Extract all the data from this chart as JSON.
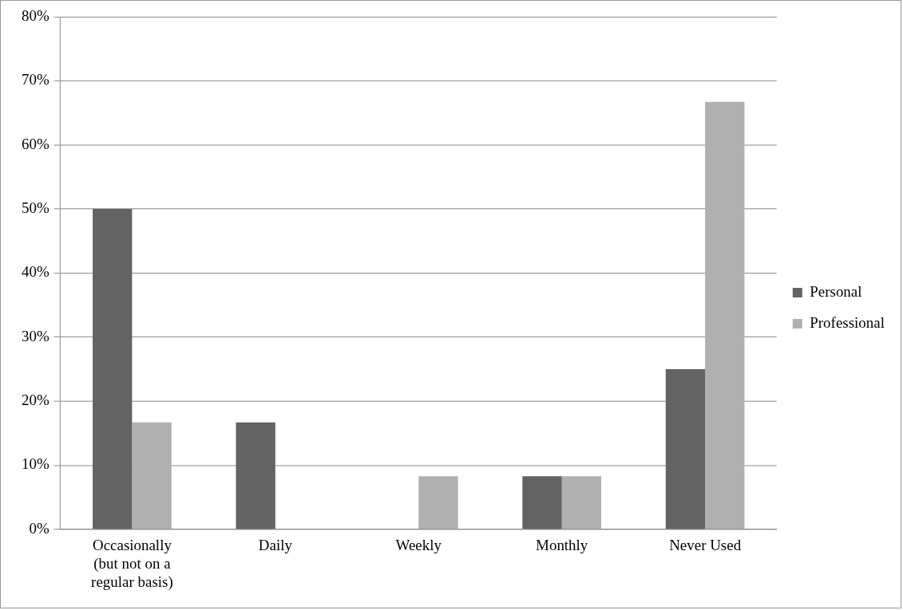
{
  "chart_data": {
    "type": "bar",
    "categories": [
      "Occasionally (but not on a regular basis)",
      "Daily",
      "Weekly",
      "Monthly",
      "Never Used"
    ],
    "series": [
      {
        "name": "Personal",
        "color": "#636363",
        "values": [
          50,
          16.7,
          0,
          8.3,
          25
        ]
      },
      {
        "name": "Professional",
        "color": "#b0b0b0",
        "values": [
          16.7,
          0,
          8.3,
          8.3,
          66.7
        ]
      }
    ],
    "ylim": [
      0,
      80
    ],
    "yticks": [
      {
        "value": 0,
        "label": "0%"
      },
      {
        "value": 10,
        "label": "10%"
      },
      {
        "value": 20,
        "label": "20%"
      },
      {
        "value": 30,
        "label": "30%"
      },
      {
        "value": 40,
        "label": "40%"
      },
      {
        "value": 50,
        "label": "50%"
      },
      {
        "value": 60,
        "label": "60%"
      },
      {
        "value": 70,
        "label": "70%"
      },
      {
        "value": 80,
        "label": "80%"
      }
    ],
    "grid": "y",
    "legend": "right"
  }
}
